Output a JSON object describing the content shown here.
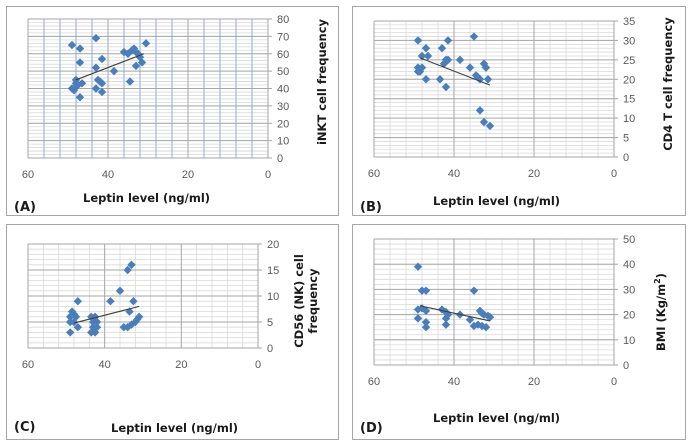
{
  "figure": {
    "panels": [
      "A",
      "B",
      "C",
      "D"
    ]
  },
  "colors": {
    "marker": "#4a7ebb",
    "trendline": "#404040",
    "major_grid": "#a6a6a6",
    "minor_grid": "#d9d9d9",
    "minor_vgrid_a": "#9dbbe0"
  },
  "chart_data": [
    {
      "panel": "A",
      "letter": "(A)",
      "type": "scatter",
      "title": "",
      "xlabel": "Leptin level (ng/ml)",
      "ylabel": "iNKT cell frequency",
      "xlim": [
        60,
        0
      ],
      "x_reversed": true,
      "ylim": [
        0,
        80
      ],
      "xticks": [
        60,
        40,
        20,
        0
      ],
      "yticks": [
        0,
        10,
        20,
        30,
        40,
        50,
        60,
        70,
        80
      ],
      "y_minor_step": 2,
      "x_minor_step": 4,
      "grid": true,
      "trendline": {
        "x": [
          48,
          31
        ],
        "y": [
          45,
          60
        ]
      },
      "points": [
        {
          "x": 49,
          "y": 65
        },
        {
          "x": 47,
          "y": 63
        },
        {
          "x": 43,
          "y": 69
        },
        {
          "x": 47,
          "y": 55
        },
        {
          "x": 41.5,
          "y": 57
        },
        {
          "x": 43,
          "y": 52
        },
        {
          "x": 38.5,
          "y": 50
        },
        {
          "x": 36,
          "y": 61
        },
        {
          "x": 35,
          "y": 60
        },
        {
          "x": 34,
          "y": 62
        },
        {
          "x": 33.5,
          "y": 63
        },
        {
          "x": 33,
          "y": 61
        },
        {
          "x": 32.5,
          "y": 60
        },
        {
          "x": 32,
          "y": 58
        },
        {
          "x": 33,
          "y": 53
        },
        {
          "x": 31.5,
          "y": 55
        },
        {
          "x": 30.5,
          "y": 66
        },
        {
          "x": 34.5,
          "y": 44
        },
        {
          "x": 48,
          "y": 45
        },
        {
          "x": 48,
          "y": 43
        },
        {
          "x": 47.5,
          "y": 42
        },
        {
          "x": 46.5,
          "y": 43
        },
        {
          "x": 49,
          "y": 40
        },
        {
          "x": 48.5,
          "y": 39
        },
        {
          "x": 48,
          "y": 41
        },
        {
          "x": 47,
          "y": 35
        },
        {
          "x": 43,
          "y": 40
        },
        {
          "x": 42.5,
          "y": 45
        },
        {
          "x": 42,
          "y": 44
        },
        {
          "x": 41.5,
          "y": 43
        },
        {
          "x": 41.5,
          "y": 38
        }
      ]
    },
    {
      "panel": "B",
      "letter": "(B)",
      "type": "scatter",
      "title": "",
      "xlabel": "Leptin level (ng/ml)",
      "ylabel": "CD4 T cell frequency",
      "xlim": [
        60,
        0
      ],
      "x_reversed": true,
      "ylim": [
        0,
        35
      ],
      "xticks": [
        60,
        40,
        20,
        0
      ],
      "yticks": [
        0,
        5,
        10,
        15,
        20,
        25,
        30,
        35
      ],
      "y_minor_step": 1,
      "x_minor_step": 4,
      "grid": true,
      "trendline": {
        "x": [
          48.5,
          31
        ],
        "y": [
          25.5,
          18.5
        ]
      },
      "points": [
        {
          "x": 49,
          "y": 30
        },
        {
          "x": 47,
          "y": 28
        },
        {
          "x": 41.5,
          "y": 30
        },
        {
          "x": 43,
          "y": 28
        },
        {
          "x": 35,
          "y": 31
        },
        {
          "x": 48,
          "y": 26
        },
        {
          "x": 46.5,
          "y": 26
        },
        {
          "x": 42,
          "y": 25
        },
        {
          "x": 41.5,
          "y": 25
        },
        {
          "x": 42.5,
          "y": 24
        },
        {
          "x": 38.5,
          "y": 25
        },
        {
          "x": 36,
          "y": 23
        },
        {
          "x": 32.5,
          "y": 24
        },
        {
          "x": 32,
          "y": 23
        },
        {
          "x": 49,
          "y": 23
        },
        {
          "x": 48.5,
          "y": 22
        },
        {
          "x": 48,
          "y": 23
        },
        {
          "x": 49,
          "y": 22
        },
        {
          "x": 47,
          "y": 20
        },
        {
          "x": 43.5,
          "y": 20
        },
        {
          "x": 42,
          "y": 18
        },
        {
          "x": 34.5,
          "y": 21
        },
        {
          "x": 34,
          "y": 20.5
        },
        {
          "x": 33.5,
          "y": 20
        },
        {
          "x": 31.5,
          "y": 20
        },
        {
          "x": 33.5,
          "y": 12
        },
        {
          "x": 32.5,
          "y": 9
        },
        {
          "x": 31,
          "y": 8
        }
      ]
    },
    {
      "panel": "C",
      "letter": "(C)",
      "type": "scatter",
      "title": "",
      "xlabel": "Leptin level (ng/ml)",
      "ylabel": "CD56 (NK) cell frequency",
      "ylabel_lines": [
        "CD56 (NK) cell",
        "frequency"
      ],
      "xlim": [
        60,
        0
      ],
      "x_reversed": true,
      "ylim": [
        0,
        20
      ],
      "xticks": [
        60,
        40,
        20,
        0
      ],
      "yticks": [
        0,
        5,
        10,
        15,
        20
      ],
      "y_minor_step": 1,
      "x_minor_step": 4,
      "grid": true,
      "trendline": {
        "x": [
          48,
          31
        ],
        "y": [
          4.8,
          8
        ]
      },
      "points": [
        {
          "x": 47,
          "y": 9
        },
        {
          "x": 49,
          "y": 6
        },
        {
          "x": 48.5,
          "y": 7
        },
        {
          "x": 48,
          "y": 6.5
        },
        {
          "x": 47.5,
          "y": 6
        },
        {
          "x": 49,
          "y": 5
        },
        {
          "x": 48,
          "y": 5
        },
        {
          "x": 47,
          "y": 4
        },
        {
          "x": 49,
          "y": 3
        },
        {
          "x": 43.5,
          "y": 6
        },
        {
          "x": 42.5,
          "y": 6
        },
        {
          "x": 43,
          "y": 5
        },
        {
          "x": 42,
          "y": 5
        },
        {
          "x": 43,
          "y": 4
        },
        {
          "x": 42,
          "y": 4
        },
        {
          "x": 43.5,
          "y": 3
        },
        {
          "x": 42.5,
          "y": 3
        },
        {
          "x": 38.5,
          "y": 9
        },
        {
          "x": 36,
          "y": 11
        },
        {
          "x": 34,
          "y": 15
        },
        {
          "x": 33,
          "y": 16
        },
        {
          "x": 33.5,
          "y": 7
        },
        {
          "x": 32.5,
          "y": 9
        },
        {
          "x": 35,
          "y": 4
        },
        {
          "x": 34,
          "y": 4
        },
        {
          "x": 33,
          "y": 4.5
        },
        {
          "x": 32,
          "y": 5
        },
        {
          "x": 31.5,
          "y": 5.5
        },
        {
          "x": 31,
          "y": 6
        }
      ]
    },
    {
      "panel": "D",
      "letter": "(D)",
      "type": "scatter",
      "title": "",
      "xlabel": "Leptin level (ng/ml)",
      "ylabel": "BMI (Kg/m2)",
      "ylabel_main": "BMI (Kg/m",
      "ylabel_sup": "2",
      "ylabel_end": ")",
      "xlim": [
        60,
        0
      ],
      "x_reversed": true,
      "ylim": [
        0,
        50
      ],
      "xticks": [
        60,
        40,
        20,
        0
      ],
      "yticks": [
        0,
        10,
        20,
        30,
        40,
        50
      ],
      "y_minor_step": 2,
      "x_minor_step": 4,
      "grid": true,
      "trendline": {
        "x": [
          48.5,
          31
        ],
        "y": [
          23.5,
          17.5
        ]
      },
      "points": [
        {
          "x": 49,
          "y": 39
        },
        {
          "x": 48,
          "y": 29.5
        },
        {
          "x": 47,
          "y": 29.5
        },
        {
          "x": 35,
          "y": 29.5
        },
        {
          "x": 49,
          "y": 22
        },
        {
          "x": 48,
          "y": 22.5
        },
        {
          "x": 47,
          "y": 21.5
        },
        {
          "x": 49,
          "y": 18.5
        },
        {
          "x": 47,
          "y": 17
        },
        {
          "x": 47,
          "y": 15
        },
        {
          "x": 43,
          "y": 22
        },
        {
          "x": 42,
          "y": 21
        },
        {
          "x": 41.5,
          "y": 20
        },
        {
          "x": 42,
          "y": 18.5
        },
        {
          "x": 42,
          "y": 16
        },
        {
          "x": 38.5,
          "y": 20
        },
        {
          "x": 36,
          "y": 18
        },
        {
          "x": 35,
          "y": 15.5
        },
        {
          "x": 34,
          "y": 16
        },
        {
          "x": 33.5,
          "y": 21.5
        },
        {
          "x": 33,
          "y": 20.5
        },
        {
          "x": 32.5,
          "y": 20
        },
        {
          "x": 32,
          "y": 15
        },
        {
          "x": 33,
          "y": 15.5
        },
        {
          "x": 31.5,
          "y": 19.5
        },
        {
          "x": 31,
          "y": 19
        }
      ]
    }
  ]
}
